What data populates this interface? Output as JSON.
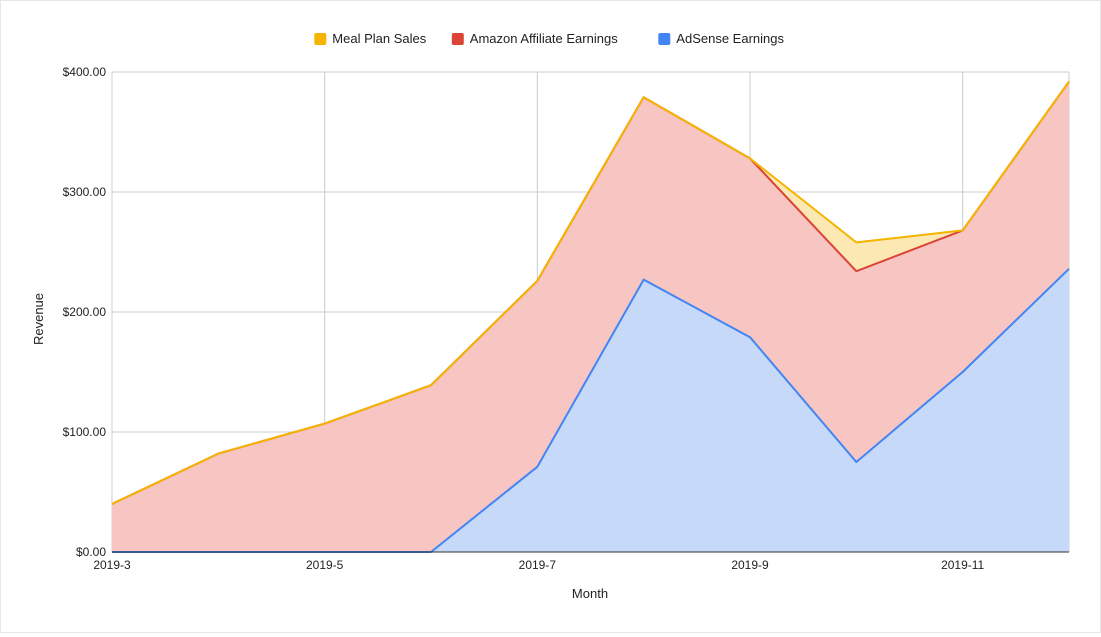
{
  "chart_data": {
    "type": "area",
    "stacked": true,
    "title": "",
    "xlabel": "Month",
    "ylabel": "Revenue",
    "ylim": [
      0,
      400
    ],
    "grid": true,
    "legend_position": "top",
    "x_tick_labels": [
      "2019-3",
      "2019-5",
      "2019-7",
      "2019-9",
      "2019-11"
    ],
    "y_tick_labels": [
      "$0.00",
      "$100.00",
      "$200.00",
      "$300.00",
      "$400.00"
    ],
    "categories": [
      "2019-3",
      "2019-4",
      "2019-5",
      "2019-6",
      "2019-7",
      "2019-8",
      "2019-9",
      "2019-10",
      "2019-11",
      "2019-12"
    ],
    "series": [
      {
        "name": "AdSense Earnings",
        "color": "#4285F4",
        "fill": "#c6d9f9",
        "values": [
          0,
          0,
          0,
          0,
          71,
          227,
          179,
          75,
          150,
          236
        ]
      },
      {
        "name": "Amazon Affiliate Earnings",
        "color": "#DB4437",
        "fill": "#f7c5c2",
        "values": [
          40,
          82,
          107,
          139,
          155,
          152,
          149,
          159,
          118,
          156
        ]
      },
      {
        "name": "Meal Plan Sales",
        "color": "#F4B400",
        "fill": "#fce8b2",
        "values": [
          0,
          0,
          0,
          0,
          0,
          0,
          0,
          24,
          0,
          0
        ]
      }
    ],
    "legend_order": [
      "Meal Plan Sales",
      "Amazon Affiliate Earnings",
      "AdSense Earnings"
    ],
    "tick_every": 2
  }
}
